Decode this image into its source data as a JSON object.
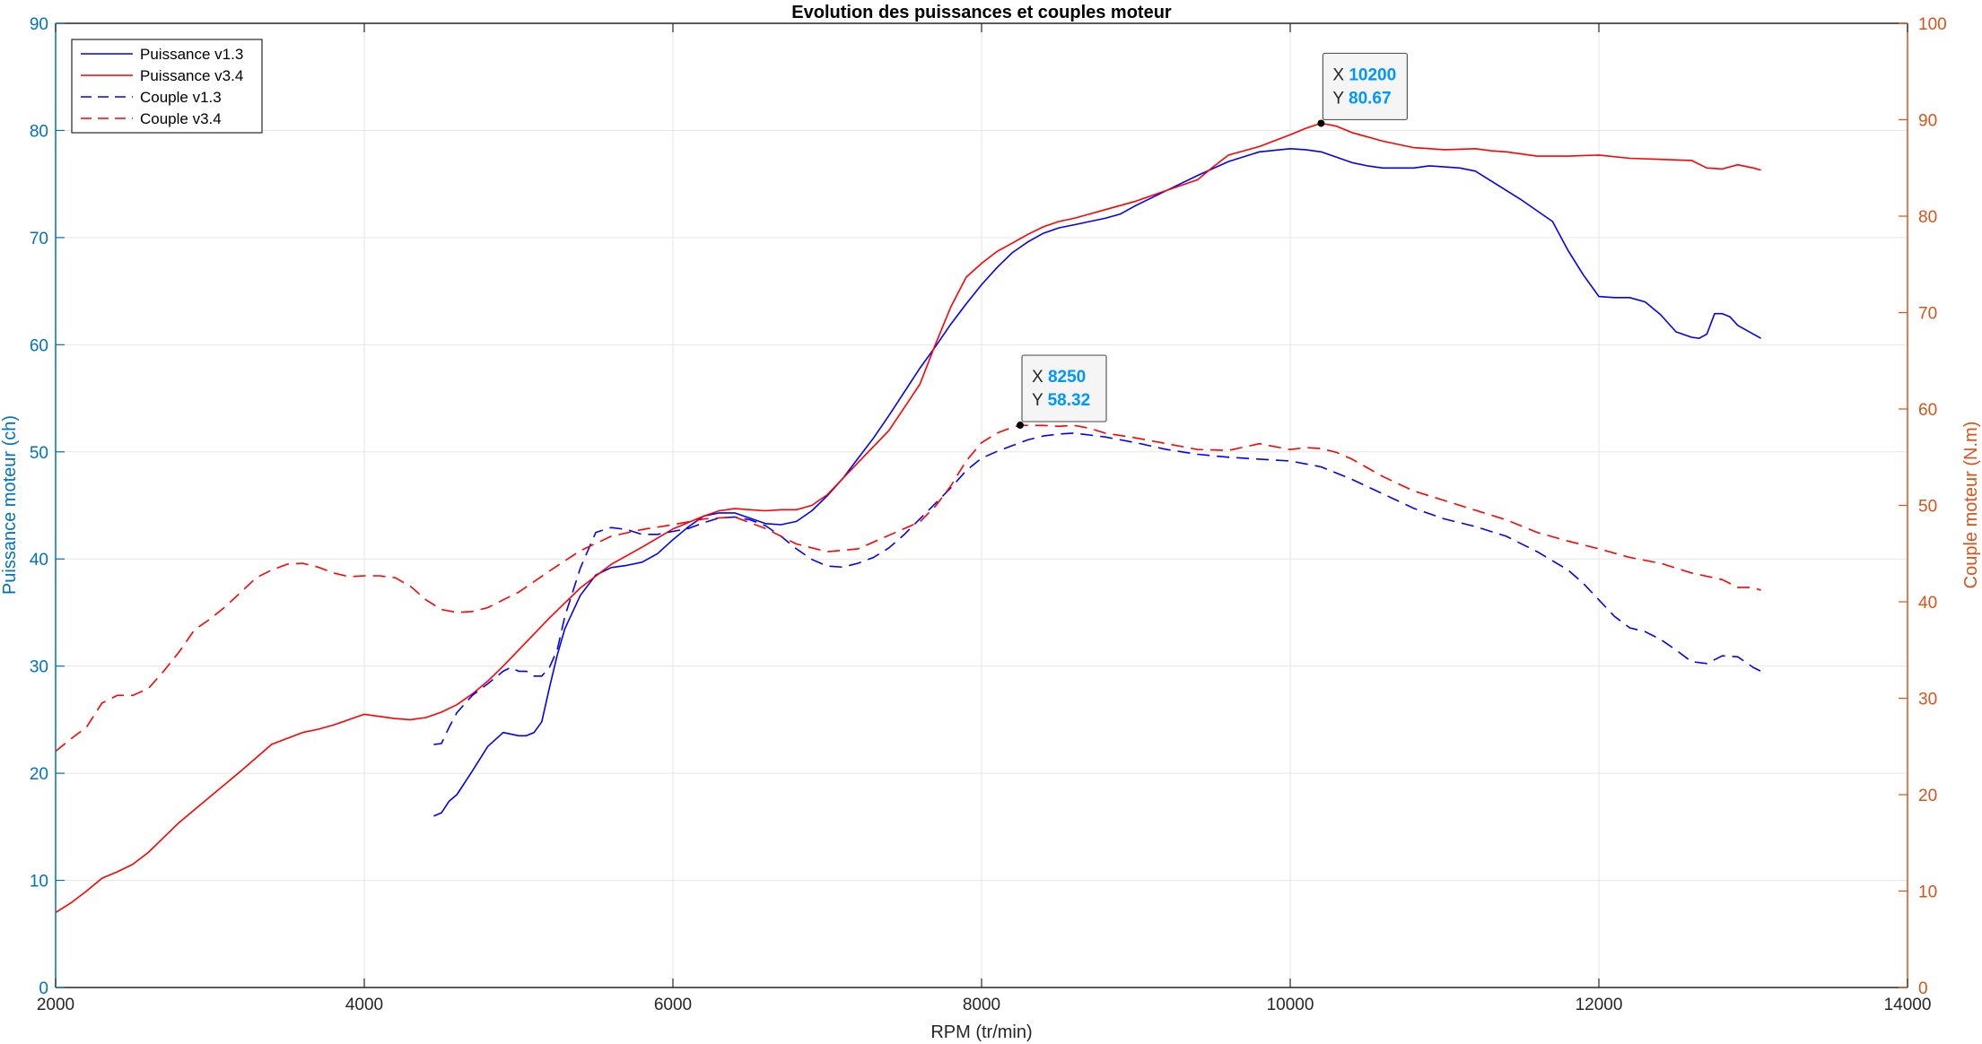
{
  "chart_data": {
    "type": "line",
    "title": "Evolution des puissances et couples moteur",
    "xlabel": "RPM (tr/min)",
    "ylabel_left": "Puissance moteur (ch)",
    "ylabel_right": "Couple moteur (N.m)",
    "xlim": [
      2000,
      14000
    ],
    "ylim_left": [
      0,
      90
    ],
    "ylim_right": [
      0,
      100
    ],
    "x_ticks": [
      2000,
      4000,
      6000,
      8000,
      10000,
      12000,
      14000
    ],
    "y_ticks_left": [
      0,
      10,
      20,
      30,
      40,
      50,
      60,
      70,
      80,
      90
    ],
    "y_ticks_right": [
      0,
      10,
      20,
      30,
      40,
      50,
      60,
      70,
      80,
      90,
      100
    ],
    "grid": true,
    "legend_position": "top-left",
    "colors": {
      "left_axis": "#0072bd",
      "right_axis": "#d95319",
      "v13": "#0000ff",
      "v34": "#ff0000",
      "grid": "#e6e6e6",
      "datatip_value": "#0096ff"
    },
    "series": [
      {
        "name": "Puissance v1.3",
        "axis": "left",
        "style": "solid",
        "color": "#0000ff",
        "x": [
          4450,
          4500,
          4550,
          4600,
          4700,
          4800,
          4900,
          5000,
          5050,
          5100,
          5150,
          5200,
          5250,
          5300,
          5400,
          5500,
          5600,
          5700,
          5800,
          5900,
          6000,
          6100,
          6200,
          6300,
          6400,
          6500,
          6600,
          6700,
          6800,
          6900,
          7000,
          7100,
          7200,
          7300,
          7400,
          7500,
          7600,
          7700,
          7800,
          7900,
          8000,
          8100,
          8200,
          8300,
          8400,
          8500,
          8600,
          8700,
          8800,
          8900,
          9000,
          9200,
          9400,
          9600,
          9800,
          10000,
          10100,
          10200,
          10300,
          10400,
          10500,
          10600,
          10800,
          10900,
          11000,
          11100,
          11200,
          11300,
          11500,
          11700,
          11800,
          11900,
          12000,
          12100,
          12200,
          12300,
          12400,
          12500,
          12600,
          12650,
          12700,
          12750,
          12800,
          12850,
          12900,
          13000,
          13050
        ],
        "values": [
          16,
          16.3,
          17.4,
          18,
          20.2,
          22.5,
          23.8,
          23.5,
          23.5,
          23.8,
          24.8,
          28,
          31,
          33.5,
          36.6,
          38.5,
          39.2,
          39.4,
          39.7,
          40.5,
          41.8,
          43,
          44,
          44.3,
          44.3,
          43.8,
          43.3,
          43.2,
          43.5,
          44.5,
          45.9,
          47.5,
          49.4,
          51.3,
          53.4,
          55.6,
          57.8,
          59.8,
          61.9,
          63.8,
          65.6,
          67.2,
          68.6,
          69.6,
          70.4,
          70.9,
          71.2,
          71.5,
          71.8,
          72.2,
          73,
          74.4,
          75.8,
          77.1,
          78,
          78.3,
          78.2,
          78,
          77.5,
          77,
          76.7,
          76.5,
          76.5,
          76.7,
          76.6,
          76.5,
          76.2,
          75.3,
          73.5,
          71.5,
          68.8,
          66.5,
          64.5,
          64.4,
          64.4,
          64,
          62.8,
          61.2,
          60.7,
          60.6,
          61,
          62.9,
          62.9,
          62.6,
          61.8,
          61,
          60.6
        ]
      },
      {
        "name": "Puissance v3.4",
        "axis": "left",
        "style": "solid",
        "color": "#ff0000",
        "x": [
          2000,
          2100,
          2200,
          2300,
          2400,
          2500,
          2600,
          2700,
          2800,
          2900,
          3000,
          3200,
          3400,
          3600,
          3700,
          3800,
          3900,
          4000,
          4100,
          4200,
          4300,
          4400,
          4500,
          4600,
          4700,
          4800,
          4900,
          5000,
          5200,
          5400,
          5600,
          5800,
          6000,
          6200,
          6300,
          6400,
          6500,
          6600,
          6700,
          6800,
          6900,
          7000,
          7200,
          7400,
          7600,
          7700,
          7800,
          7900,
          8000,
          8100,
          8200,
          8300,
          8400,
          8500,
          8600,
          8700,
          8800,
          9000,
          9200,
          9400,
          9500,
          9600,
          9800,
          10000,
          10100,
          10200,
          10300,
          10400,
          10600,
          10800,
          11000,
          11200,
          11300,
          11400,
          11500,
          11600,
          11800,
          12000,
          12200,
          12400,
          12600,
          12700,
          12800,
          12900,
          13000,
          13050
        ],
        "values": [
          7,
          7.9,
          9,
          10.2,
          10.8,
          11.5,
          12.6,
          14,
          15.4,
          16.6,
          17.8,
          20.2,
          22.7,
          23.8,
          24.1,
          24.5,
          25,
          25.5,
          25.3,
          25.1,
          25,
          25.2,
          25.7,
          26.4,
          27.4,
          28.6,
          30,
          31.5,
          34.5,
          37.3,
          39.5,
          41.1,
          42.8,
          44,
          44.5,
          44.7,
          44.6,
          44.5,
          44.6,
          44.6,
          45,
          46,
          49,
          52,
          56.3,
          60,
          63.5,
          66.3,
          67.6,
          68.7,
          69.5,
          70.3,
          71,
          71.5,
          71.8,
          72.2,
          72.6,
          73.4,
          74.4,
          75.4,
          76.6,
          77.7,
          78.5,
          79.6,
          80.2,
          80.67,
          80.4,
          79.8,
          79,
          78.4,
          78.2,
          78.3,
          78.1,
          78,
          77.8,
          77.6,
          77.6,
          77.7,
          77.4,
          77.3,
          77.2,
          76.5,
          76.4,
          76.8,
          76.5,
          76.3
        ]
      },
      {
        "name": "Couple v1.3",
        "axis": "right",
        "style": "dashed",
        "color": "#0000ff",
        "x": [
          4450,
          4500,
          4550,
          4600,
          4700,
          4800,
          4900,
          4950,
          5000,
          5050,
          5100,
          5150,
          5200,
          5250,
          5300,
          5400,
          5500,
          5600,
          5700,
          5800,
          5900,
          6000,
          6100,
          6200,
          6300,
          6400,
          6500,
          6600,
          6700,
          6800,
          6900,
          7000,
          7100,
          7200,
          7300,
          7400,
          7500,
          7600,
          7700,
          7800,
          7900,
          8000,
          8100,
          8200,
          8300,
          8400,
          8500,
          8600,
          8700,
          8800,
          8900,
          9000,
          9200,
          9400,
          9600,
          9800,
          10000,
          10200,
          10400,
          10600,
          10800,
          11000,
          11200,
          11400,
          11600,
          11800,
          11900,
          12000,
          12100,
          12200,
          12300,
          12400,
          12500,
          12600,
          12700,
          12800,
          12900,
          13000,
          13050
        ],
        "values": [
          25.2,
          25.3,
          27,
          28.5,
          30.3,
          31.5,
          32.8,
          33.2,
          32.8,
          32.8,
          32.3,
          32.3,
          33.2,
          35,
          38.5,
          43.5,
          47.2,
          47.7,
          47.5,
          47,
          47,
          47.3,
          47.6,
          48.2,
          48.7,
          48.8,
          48.5,
          47.9,
          46.8,
          45.5,
          44.4,
          43.7,
          43.6,
          44,
          44.6,
          45.6,
          47,
          48.6,
          50.2,
          51.8,
          53.6,
          54.9,
          55.6,
          56.2,
          56.8,
          57.2,
          57.4,
          57.5,
          57.3,
          57.1,
          56.8,
          56.5,
          55.8,
          55.3,
          55,
          54.8,
          54.6,
          54,
          52.7,
          51.2,
          49.7,
          48.6,
          47.8,
          46.8,
          45.2,
          43.3,
          41.9,
          40.2,
          38.5,
          37.3,
          36.9,
          36.1,
          35,
          33.8,
          33.6,
          34.4,
          34.3,
          33.2,
          32.8
        ]
      },
      {
        "name": "Couple v3.4",
        "axis": "right",
        "style": "dashed",
        "color": "#ff0000",
        "x": [
          2000,
          2100,
          2200,
          2300,
          2400,
          2500,
          2600,
          2700,
          2800,
          2900,
          3000,
          3100,
          3200,
          3300,
          3400,
          3500,
          3600,
          3700,
          3800,
          3900,
          4000,
          4100,
          4200,
          4300,
          4400,
          4500,
          4600,
          4700,
          4800,
          4900,
          5000,
          5200,
          5400,
          5600,
          5800,
          6000,
          6200,
          6400,
          6600,
          6800,
          7000,
          7200,
          7400,
          7600,
          7700,
          7800,
          7900,
          8000,
          8100,
          8200,
          8250,
          8300,
          8400,
          8500,
          8600,
          8700,
          8800,
          9000,
          9200,
          9400,
          9600,
          9800,
          10000,
          10100,
          10200,
          10300,
          10400,
          10600,
          10800,
          11000,
          11200,
          11400,
          11600,
          11800,
          12000,
          12200,
          12400,
          12600,
          12800,
          12900,
          13000,
          13050
        ],
        "values": [
          24.5,
          25.8,
          27,
          29.5,
          30.3,
          30.3,
          31,
          32.8,
          34.8,
          37.1,
          38.2,
          39.5,
          41,
          42.5,
          43.3,
          43.9,
          44,
          43.6,
          43,
          42.6,
          42.7,
          42.7,
          42.5,
          41.6,
          40.2,
          39.2,
          38.9,
          39,
          39.4,
          40.2,
          41,
          43.2,
          45.3,
          46.8,
          47.5,
          48,
          48.6,
          48.8,
          47.6,
          46,
          45.2,
          45.5,
          46.9,
          48.3,
          49.9,
          52,
          54.6,
          56.5,
          57.5,
          58.1,
          58.32,
          58.3,
          58.3,
          58.2,
          58.3,
          58,
          57.5,
          57,
          56.4,
          55.8,
          55.7,
          56.4,
          55.8,
          56,
          55.9,
          55.5,
          54.8,
          53,
          51.5,
          50.5,
          49.5,
          48.5,
          47.2,
          46.3,
          45.5,
          44.6,
          44,
          43,
          42.3,
          41.5,
          41.5,
          41.2
        ]
      }
    ],
    "datatips": [
      {
        "x_label": "X",
        "x": "10200",
        "y_label": "Y",
        "y": "80.67",
        "at_x": 10200,
        "at_y": 80.67,
        "axis": "left"
      },
      {
        "x_label": "X",
        "x": "8250",
        "y_label": "Y",
        "y": "58.32",
        "at_x": 8250,
        "at_y": 58.32,
        "axis": "right"
      }
    ]
  }
}
